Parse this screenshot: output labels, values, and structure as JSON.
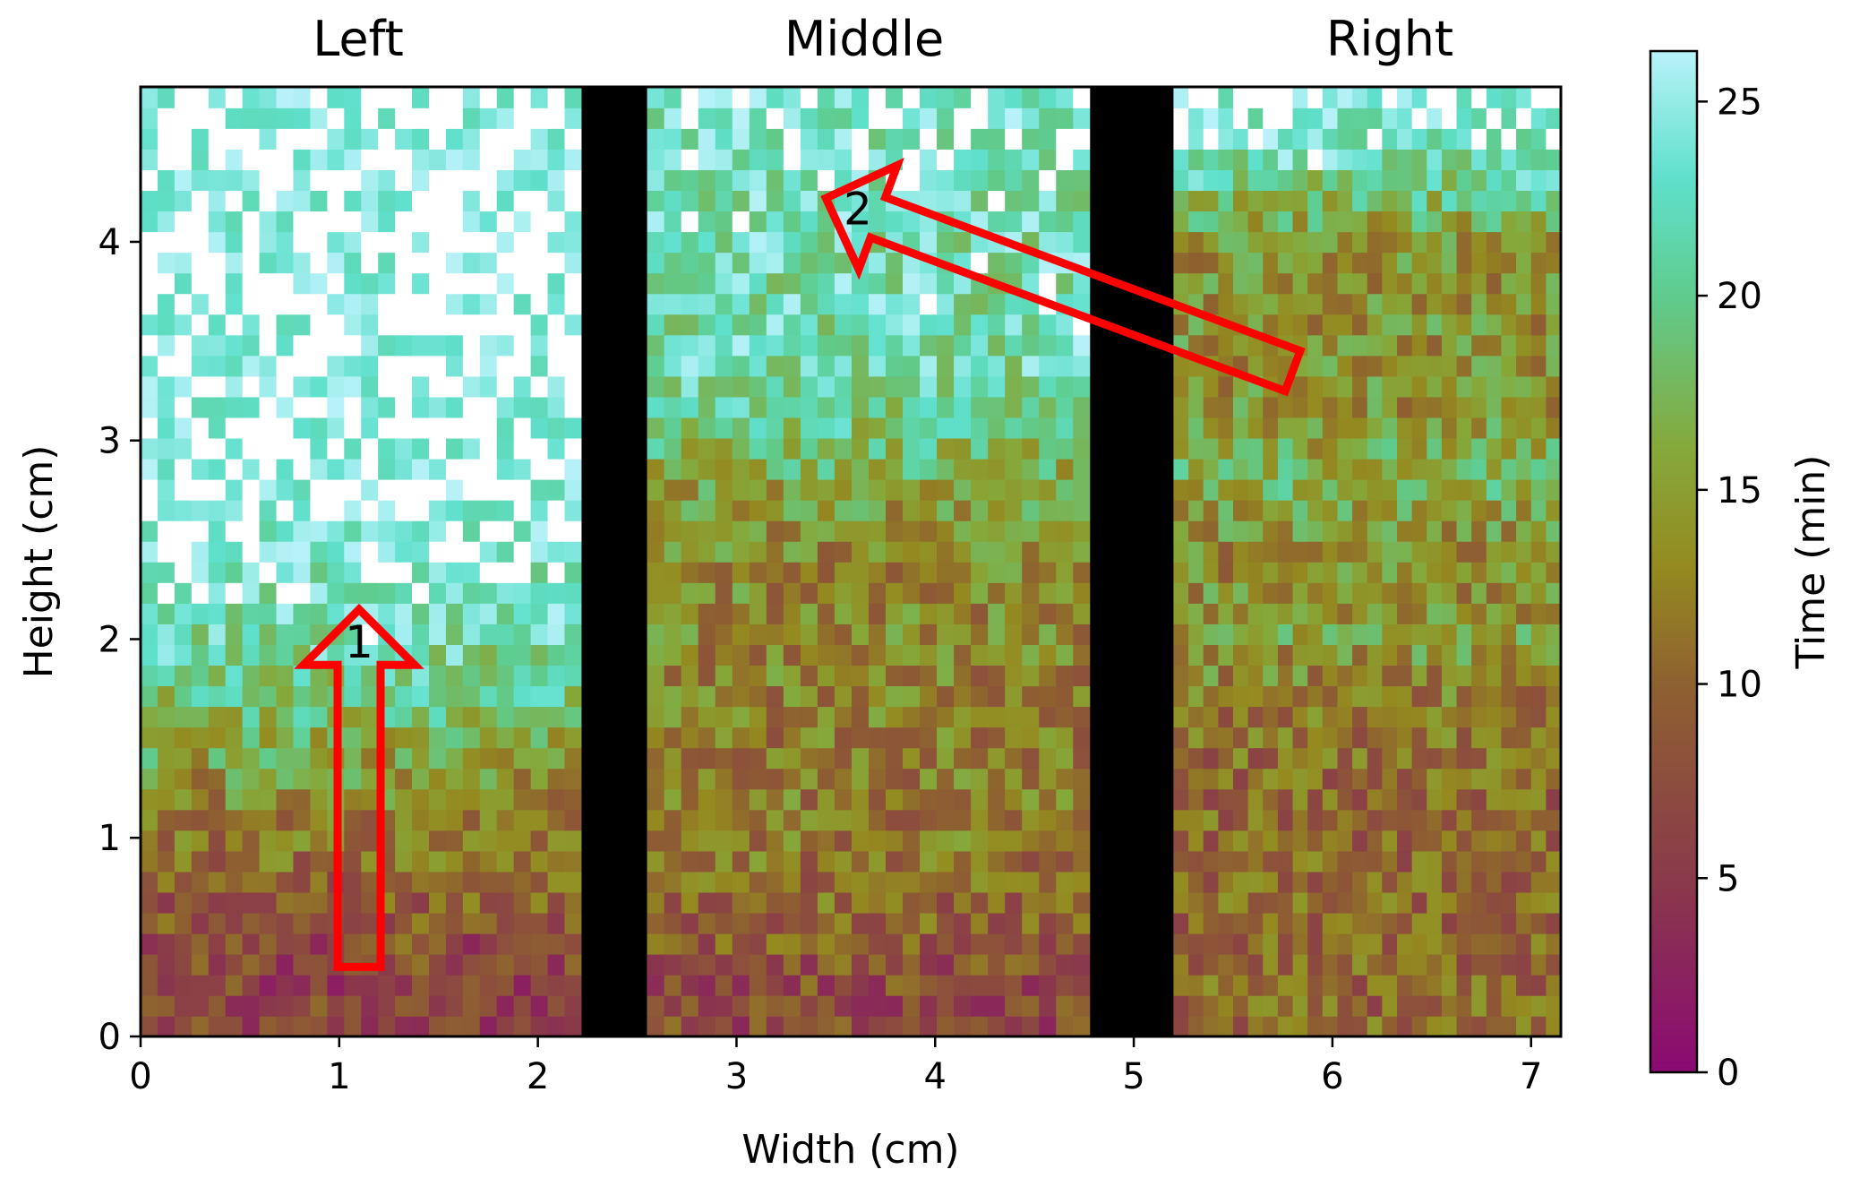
{
  "chart_data": {
    "type": "heatmap",
    "panel_titles": [
      "Left",
      "Middle",
      "Right"
    ],
    "xlabel": "Width (cm)",
    "ylabel": "Height (cm)",
    "xlim": [
      0,
      7.15
    ],
    "ylim": [
      0,
      4.78
    ],
    "xticks": [
      0,
      1,
      2,
      3,
      4,
      5,
      6,
      7
    ],
    "yticks": [
      0,
      1,
      2,
      3,
      4
    ],
    "grid": false,
    "colorbar": {
      "label": "Time (min)",
      "range": [
        0,
        26.3
      ],
      "ticks": [
        0,
        5,
        10,
        15,
        20,
        25
      ],
      "colormap_stops": [
        {
          "value": 0,
          "color": "#8b0a73"
        },
        {
          "value": 5,
          "color": "#8a3a4a"
        },
        {
          "value": 10,
          "color": "#8e6130"
        },
        {
          "value": 13,
          "color": "#948a20"
        },
        {
          "value": 16,
          "color": "#86a83a"
        },
        {
          "value": 20,
          "color": "#5fcc8e"
        },
        {
          "value": 23,
          "color": "#5fe0cc"
        },
        {
          "value": 26.3,
          "color": "#b8f2f8"
        }
      ]
    },
    "dividers": [
      {
        "x_range": [
          2.22,
          2.55
        ]
      },
      {
        "x_range": [
          4.78,
          5.2
        ]
      }
    ],
    "front_time_profiles": [
      {
        "panel": "Left",
        "x_range": [
          0,
          2.22
        ],
        "heights": [
          0,
          0.4,
          0.8,
          1.2,
          1.6,
          2.0,
          2.4,
          2.8,
          3.2,
          3.6,
          4.0,
          4.4,
          4.78
        ],
        "times": [
          6,
          7,
          10,
          13,
          18,
          22,
          24,
          26.3,
          26.3,
          26.3,
          26.3,
          26.3,
          26.3
        ]
      },
      {
        "panel": "Middle",
        "x_range": [
          2.55,
          4.78
        ],
        "heights": [
          0,
          0.4,
          0.8,
          1.2,
          1.6,
          2.0,
          2.4,
          2.8,
          3.2,
          3.6,
          4.0,
          4.4,
          4.78
        ],
        "times": [
          7,
          8,
          11,
          12,
          12,
          13,
          13,
          16,
          21,
          22,
          22,
          23,
          24
        ]
      },
      {
        "panel": "Right",
        "x_range": [
          5.2,
          7.15
        ],
        "heights": [
          0,
          0.4,
          0.8,
          1.2,
          1.6,
          2.0,
          2.4,
          2.8,
          3.2,
          3.6,
          4.0,
          4.4,
          4.78
        ],
        "times": [
          10,
          10,
          10,
          10,
          11,
          15,
          13,
          17,
          14,
          14,
          14,
          22,
          26.3
        ]
      }
    ],
    "annotations": [
      {
        "label": "1",
        "type": "arrow",
        "from": [
          1.1,
          0.35
        ],
        "to": [
          1.1,
          2.15
        ],
        "color": "#ff0000"
      },
      {
        "label": "2",
        "type": "arrow",
        "from": [
          5.8,
          3.35
        ],
        "to": [
          3.45,
          4.22
        ],
        "color": "#ff0000"
      }
    ]
  }
}
